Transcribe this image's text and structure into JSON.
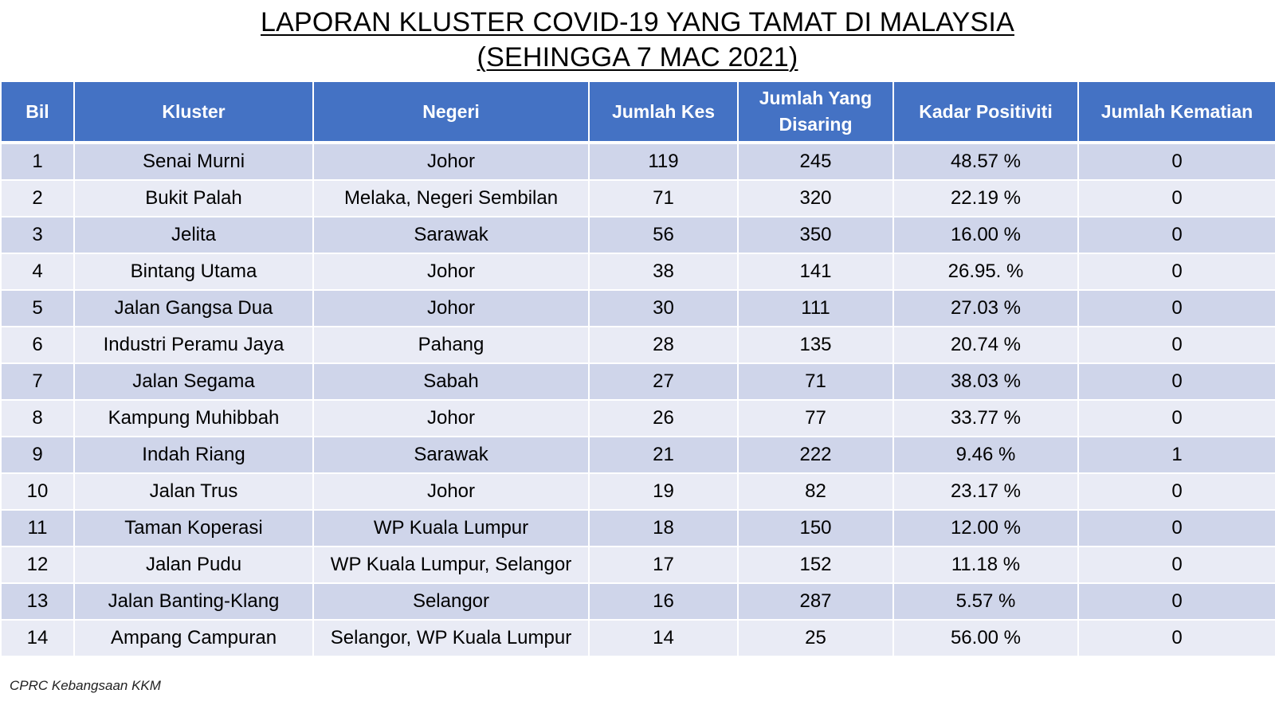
{
  "title": {
    "line1": "LAPORAN KLUSTER COVID-19 YANG TAMAT DI MALAYSIA",
    "line2": "(SEHINGGA  7 MAC 2021)"
  },
  "table": {
    "headers": [
      "Bil",
      "Kluster",
      "Negeri",
      "Jumlah Kes",
      "Jumlah Yang Disaring",
      "Kadar Positiviti",
      "Jumlah Kematian"
    ],
    "rows": [
      [
        "1",
        "Senai Murni",
        "Johor",
        "119",
        "245",
        "48.57 %",
        "0"
      ],
      [
        "2",
        "Bukit Palah",
        "Melaka, Negeri Sembilan",
        "71",
        "320",
        "22.19 %",
        "0"
      ],
      [
        "3",
        "Jelita",
        "Sarawak",
        "56",
        "350",
        "16.00 %",
        "0"
      ],
      [
        "4",
        "Bintang Utama",
        "Johor",
        "38",
        "141",
        "26.95. %",
        "0"
      ],
      [
        "5",
        "Jalan Gangsa Dua",
        "Johor",
        "30",
        "111",
        "27.03 %",
        "0"
      ],
      [
        "6",
        "Industri Peramu Jaya",
        "Pahang",
        "28",
        "135",
        "20.74 %",
        "0"
      ],
      [
        "7",
        "Jalan Segama",
        "Sabah",
        "27",
        "71",
        "38.03 %",
        "0"
      ],
      [
        "8",
        "Kampung Muhibbah",
        "Johor",
        "26",
        "77",
        "33.77 %",
        "0"
      ],
      [
        "9",
        "Indah Riang",
        "Sarawak",
        "21",
        "222",
        "9.46 %",
        "1"
      ],
      [
        "10",
        "Jalan Trus",
        "Johor",
        "19",
        "82",
        "23.17 %",
        "0"
      ],
      [
        "11",
        "Taman Koperasi",
        "WP Kuala Lumpur",
        "18",
        "150",
        "12.00 %",
        "0"
      ],
      [
        "12",
        "Jalan Pudu",
        "WP Kuala Lumpur, Selangor",
        "17",
        "152",
        "11.18 %",
        "0"
      ],
      [
        "13",
        "Jalan Banting-Klang",
        "Selangor",
        "16",
        "287",
        "5.57 %",
        "0"
      ],
      [
        "14",
        "Ampang Campuran",
        "Selangor, WP Kuala Lumpur",
        "14",
        "25",
        "56.00 %",
        "0"
      ]
    ]
  },
  "footer": "CPRC Kebangsaan KKM",
  "colors": {
    "header_bg": "#4472c4",
    "row_odd": "#cfd5ea",
    "row_even": "#e9ebf5"
  }
}
